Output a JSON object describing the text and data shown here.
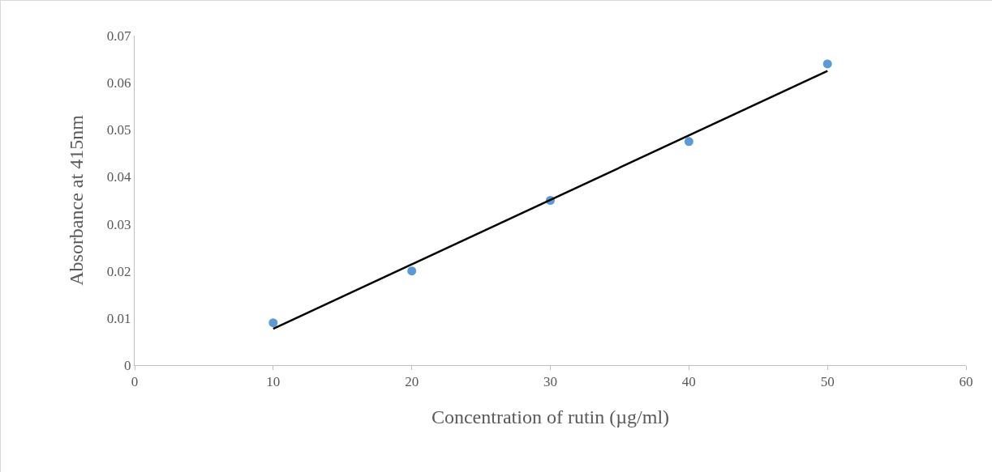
{
  "chart_data": {
    "type": "scatter",
    "xlabel": "Concentration of rutin (µg/ml)",
    "ylabel": "Absorbance at 415nm",
    "x": [
      10,
      20,
      30,
      40,
      50
    ],
    "series": [
      {
        "color": "#5b9bd5",
        "marker": "circle",
        "values": [
          0.009,
          0.02,
          0.035,
          0.0475,
          0.064
        ]
      },
      {
        "type": "line",
        "color": "#000000",
        "x": [
          10,
          50
        ],
        "values": [
          0.0077,
          0.0625
        ]
      }
    ],
    "xlim": [
      0,
      60
    ],
    "xticks": [
      0,
      10,
      20,
      30,
      40,
      50,
      60
    ],
    "ylim": [
      0,
      0.07
    ],
    "yticks": [
      0,
      0.01,
      0.02,
      0.03,
      0.04,
      0.05,
      0.06,
      0.07
    ],
    "grid": false
  }
}
